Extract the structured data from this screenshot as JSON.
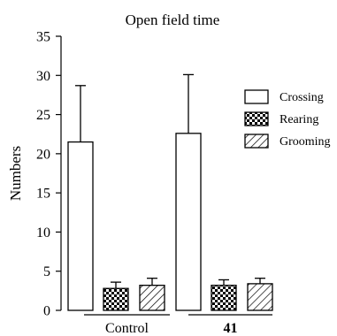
{
  "chart_data": {
    "type": "bar",
    "title": "Open field time",
    "xlabel": "",
    "ylabel": "Numbers",
    "ylim": [
      0,
      35
    ],
    "yticks": [
      0,
      5,
      10,
      15,
      20,
      25,
      30,
      35
    ],
    "categories": [
      "Control",
      "41"
    ],
    "series": [
      {
        "name": "Crossing",
        "pattern": "open",
        "values": [
          21.5,
          22.6
        ],
        "errors": [
          7.2,
          7.5
        ]
      },
      {
        "name": "Rearing",
        "pattern": "checker",
        "values": [
          2.8,
          3.2
        ],
        "errors": [
          0.8,
          0.7
        ]
      },
      {
        "name": "Grooming",
        "pattern": "diagonal",
        "values": [
          3.2,
          3.4
        ],
        "errors": [
          0.9,
          0.7
        ]
      }
    ],
    "legend_position": "right",
    "grid": false,
    "colors": {
      "bar_stroke": "#000000",
      "bar_fill": "#ffffff",
      "pattern": "#000000"
    }
  }
}
